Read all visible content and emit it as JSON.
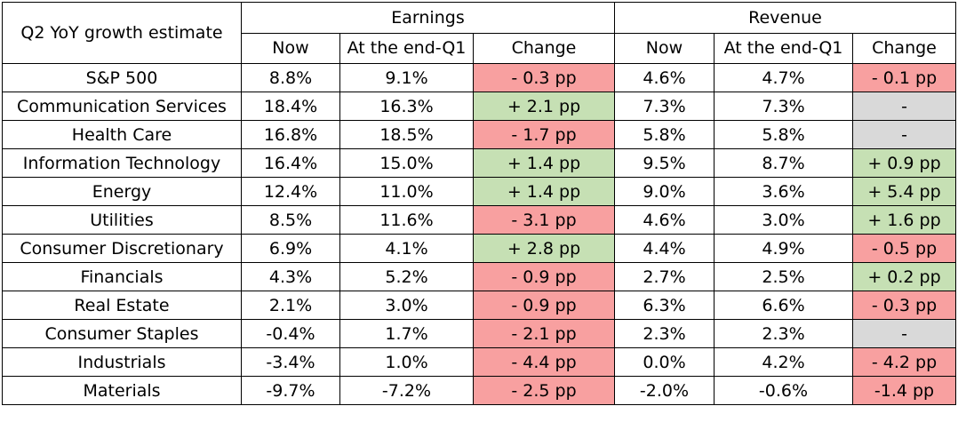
{
  "header": {
    "row_label": "Q2 YoY growth estimate",
    "group_earnings": "Earnings",
    "group_revenue": "Revenue",
    "col_now": "Now",
    "col_end_q1": "At the end-Q1",
    "col_change": "Change"
  },
  "colors": {
    "negative_change": "#f8a0a0",
    "positive_change": "#c6e0b4",
    "no_change": "#d9d9d9"
  },
  "rows": [
    {
      "name": "S&P 500",
      "earn_now": "8.8%",
      "earn_q1": "9.1%",
      "earn_chg": "- 0.3 pp",
      "earn_status": "neg",
      "rev_now": "4.6%",
      "rev_q1": "4.7%",
      "rev_chg": "- 0.1 pp",
      "rev_status": "neg"
    },
    {
      "name": "Communication Services",
      "earn_now": "18.4%",
      "earn_q1": "16.3%",
      "earn_chg": "+ 2.1 pp",
      "earn_status": "pos",
      "rev_now": "7.3%",
      "rev_q1": "7.3%",
      "rev_chg": "-",
      "rev_status": "none"
    },
    {
      "name": "Health Care",
      "earn_now": "16.8%",
      "earn_q1": "18.5%",
      "earn_chg": "- 1.7 pp",
      "earn_status": "neg",
      "rev_now": "5.8%",
      "rev_q1": "5.8%",
      "rev_chg": "-",
      "rev_status": "none"
    },
    {
      "name": "Information Technology",
      "earn_now": "16.4%",
      "earn_q1": "15.0%",
      "earn_chg": "+ 1.4 pp",
      "earn_status": "pos",
      "rev_now": "9.5%",
      "rev_q1": "8.7%",
      "rev_chg": "+ 0.9 pp",
      "rev_status": "pos"
    },
    {
      "name": "Energy",
      "earn_now": "12.4%",
      "earn_q1": "11.0%",
      "earn_chg": "+ 1.4 pp",
      "earn_status": "pos",
      "rev_now": "9.0%",
      "rev_q1": "3.6%",
      "rev_chg": "+ 5.4 pp",
      "rev_status": "pos"
    },
    {
      "name": "Utilities",
      "earn_now": "8.5%",
      "earn_q1": "11.6%",
      "earn_chg": "- 3.1 pp",
      "earn_status": "neg",
      "rev_now": "4.6%",
      "rev_q1": "3.0%",
      "rev_chg": "+ 1.6 pp",
      "rev_status": "pos"
    },
    {
      "name": "Consumer Discretionary",
      "earn_now": "6.9%",
      "earn_q1": "4.1%",
      "earn_chg": "+ 2.8 pp",
      "earn_status": "pos",
      "rev_now": "4.4%",
      "rev_q1": "4.9%",
      "rev_chg": "- 0.5 pp",
      "rev_status": "neg"
    },
    {
      "name": "Financials",
      "earn_now": "4.3%",
      "earn_q1": "5.2%",
      "earn_chg": "- 0.9 pp",
      "earn_status": "neg",
      "rev_now": "2.7%",
      "rev_q1": "2.5%",
      "rev_chg": "+ 0.2 pp",
      "rev_status": "pos"
    },
    {
      "name": "Real Estate",
      "earn_now": "2.1%",
      "earn_q1": "3.0%",
      "earn_chg": "- 0.9 pp",
      "earn_status": "neg",
      "rev_now": "6.3%",
      "rev_q1": "6.6%",
      "rev_chg": "- 0.3 pp",
      "rev_status": "neg"
    },
    {
      "name": "Consumer Staples",
      "earn_now": "-0.4%",
      "earn_q1": "1.7%",
      "earn_chg": "- 2.1 pp",
      "earn_status": "neg",
      "rev_now": "2.3%",
      "rev_q1": "2.3%",
      "rev_chg": "-",
      "rev_status": "none"
    },
    {
      "name": "Industrials",
      "earn_now": "-3.4%",
      "earn_q1": "1.0%",
      "earn_chg": "- 4.4 pp",
      "earn_status": "neg",
      "rev_now": "0.0%",
      "rev_q1": "4.2%",
      "rev_chg": "- 4.2 pp",
      "rev_status": "neg"
    },
    {
      "name": "Materials",
      "earn_now": "-9.7%",
      "earn_q1": "-7.2%",
      "earn_chg": "- 2.5 pp",
      "earn_status": "neg",
      "rev_now": "-2.0%",
      "rev_q1": "-0.6%",
      "rev_chg": "-1.4 pp",
      "rev_status": "neg"
    }
  ]
}
